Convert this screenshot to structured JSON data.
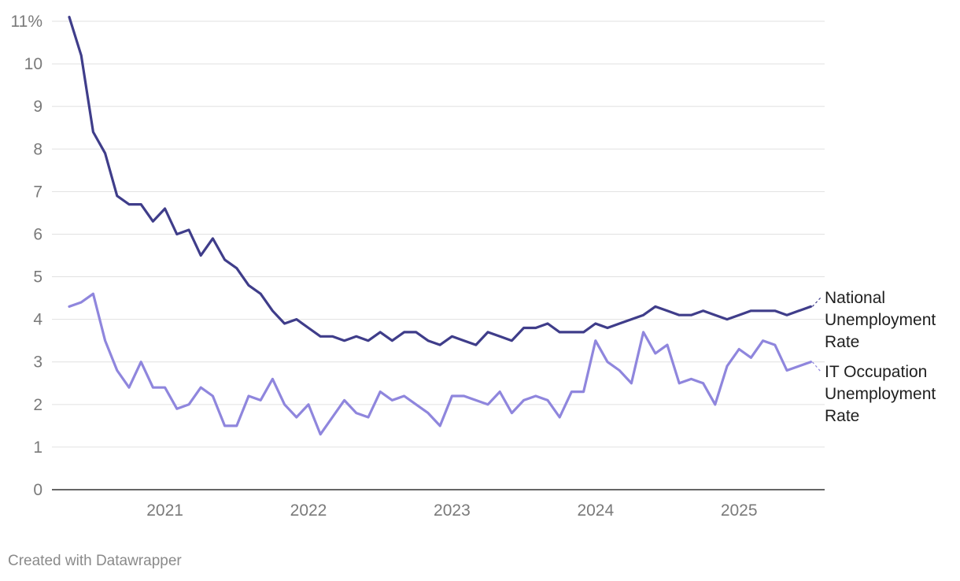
{
  "chart_data": {
    "type": "line",
    "title": "",
    "xlabel": "",
    "ylabel": "",
    "ylim": [
      0,
      11
    ],
    "y_ticks": [
      0,
      1,
      2,
      3,
      4,
      5,
      6,
      7,
      8,
      9,
      10,
      11
    ],
    "y_tick_labels": [
      "0",
      "1",
      "2",
      "3",
      "4",
      "5",
      "6",
      "7",
      "8",
      "9",
      "10",
      "11%"
    ],
    "x_ticks": [
      "2021-01",
      "2022-01",
      "2023-01",
      "2024-01",
      "2025-01"
    ],
    "x_tick_labels": [
      "2021",
      "2022",
      "2023",
      "2024",
      "2025"
    ],
    "x_start": "2020-05",
    "grid": true,
    "legend": "direct labels at right",
    "series": [
      {
        "name": "National Unemployment Rate",
        "label_lines": [
          "National",
          "Unemployment",
          "Rate"
        ],
        "color": "#3f3d8a",
        "values": [
          11.1,
          10.2,
          8.4,
          7.9,
          6.9,
          6.7,
          6.7,
          6.3,
          6.6,
          6.0,
          6.1,
          5.5,
          5.9,
          5.4,
          5.2,
          4.8,
          4.6,
          4.2,
          3.9,
          4.0,
          3.8,
          3.6,
          3.6,
          3.5,
          3.6,
          3.5,
          3.7,
          3.5,
          3.7,
          3.7,
          3.5,
          3.4,
          3.6,
          3.5,
          3.4,
          3.7,
          3.6,
          3.5,
          3.8,
          3.8,
          3.9,
          3.7,
          3.7,
          3.7,
          3.9,
          3.8,
          3.9,
          4.0,
          4.1,
          4.3,
          4.2,
          4.1,
          4.1,
          4.2,
          4.1,
          4.0,
          4.1,
          4.2,
          4.2,
          4.2,
          4.1,
          4.2,
          4.3
        ]
      },
      {
        "name": "IT Occupation Unemployment Rate",
        "label_lines": [
          "IT Occupation",
          "Unemployment",
          "Rate"
        ],
        "color": "#8f86dd",
        "values": [
          4.3,
          4.4,
          4.6,
          3.5,
          2.8,
          2.4,
          3.0,
          2.4,
          2.4,
          1.9,
          2.0,
          2.4,
          2.2,
          1.5,
          1.5,
          2.2,
          2.1,
          2.6,
          2.0,
          1.7,
          2.0,
          1.3,
          1.7,
          2.1,
          1.8,
          1.7,
          2.3,
          2.1,
          2.2,
          2.0,
          1.8,
          1.5,
          2.2,
          2.2,
          2.1,
          2.0,
          2.3,
          1.8,
          2.1,
          2.2,
          2.1,
          1.7,
          2.3,
          2.3,
          3.5,
          3.0,
          2.8,
          2.5,
          3.7,
          3.2,
          3.4,
          2.5,
          2.6,
          2.5,
          2.0,
          2.9,
          3.3,
          3.1,
          3.5,
          3.4,
          2.8,
          2.9,
          3.0
        ]
      }
    ]
  },
  "footer": {
    "credit": "Created with Datawrapper"
  }
}
